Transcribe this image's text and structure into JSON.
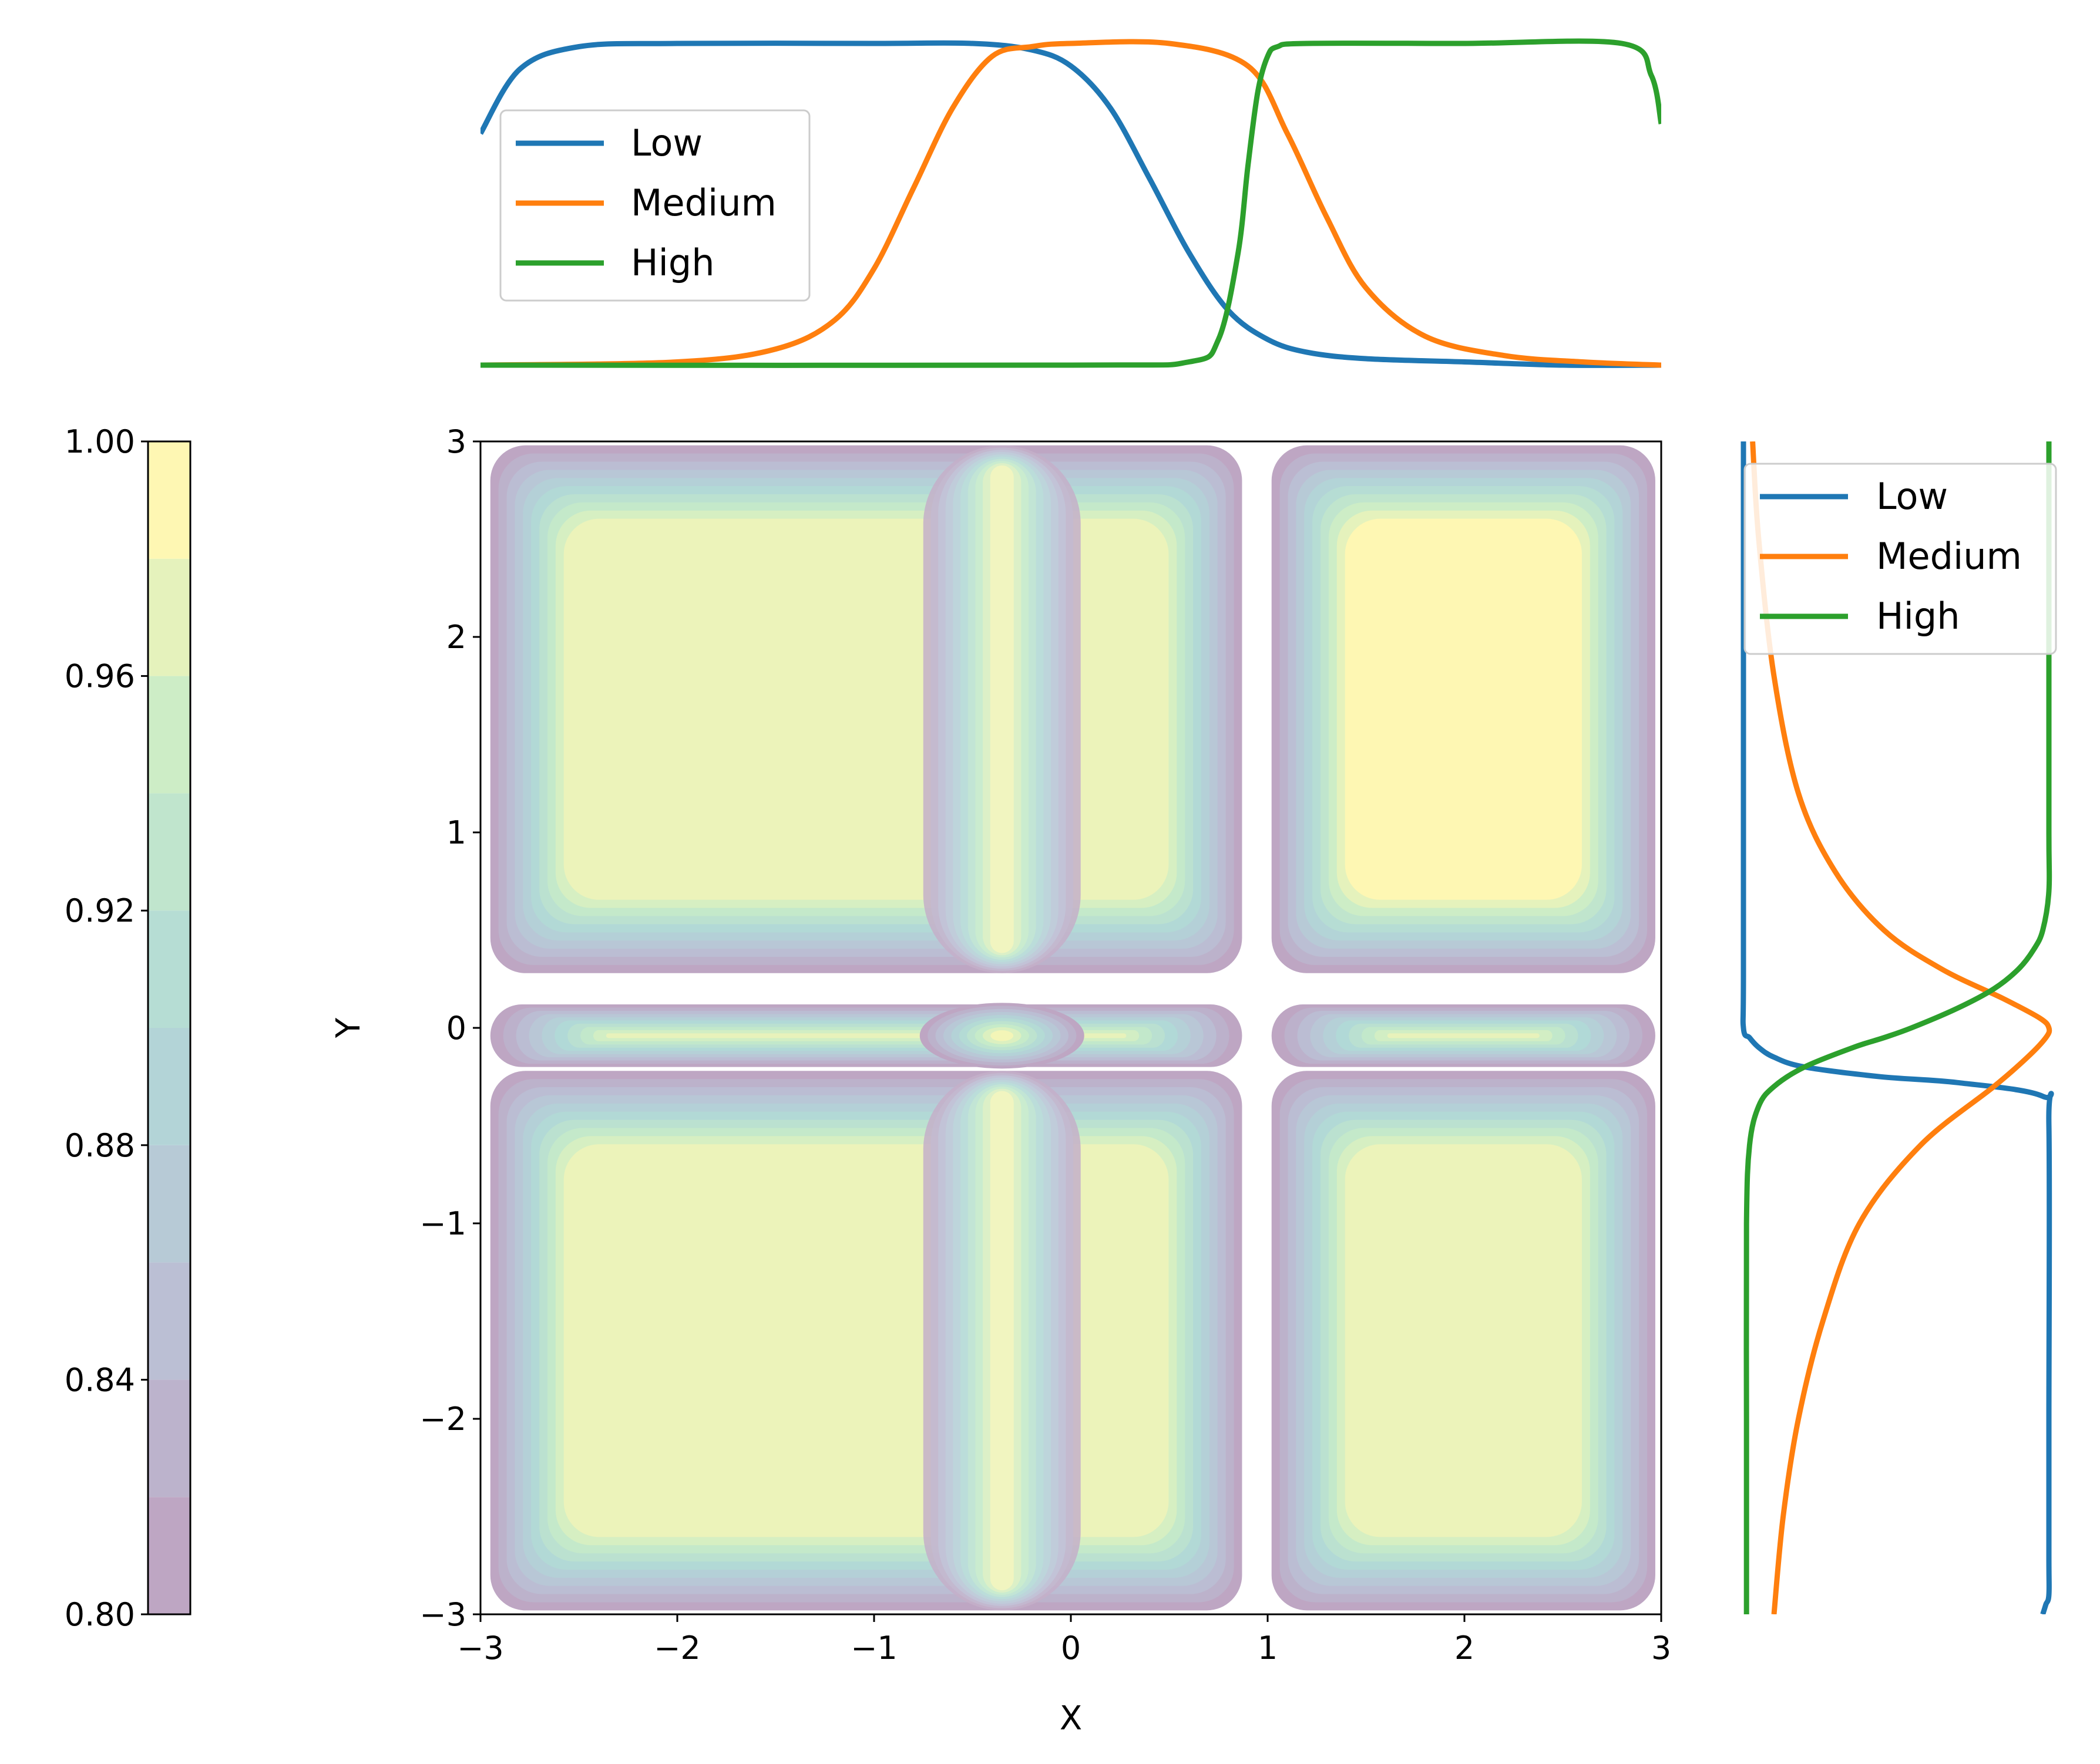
{
  "chart_data": {
    "type": "contour",
    "title": "",
    "colors": {
      "low": "#1f77b4",
      "medium": "#ff7f0e",
      "high": "#2ca02c",
      "background": "#ffffff"
    },
    "main": {
      "type": "heatmap",
      "xlabel": "X",
      "ylabel": "Y",
      "xlim": [
        -3,
        3
      ],
      "ylim": [
        -3,
        3
      ],
      "xticks": [
        -3,
        -2,
        -1,
        0,
        1,
        2,
        3
      ],
      "yticks": [
        -3,
        -2,
        -1,
        0,
        1,
        2,
        3
      ],
      "xtick_labels": [
        "−3",
        "−2",
        "−1",
        "0",
        "1",
        "2",
        "3"
      ],
      "ytick_labels": [
        "−3",
        "−2",
        "−1",
        "0",
        "1",
        "2",
        "3"
      ],
      "grid": false,
      "colormap": "viridis",
      "alpha": 0.35,
      "contour_levels": [
        0.8,
        0.82,
        0.84,
        0.86,
        0.88,
        0.9,
        0.92,
        0.94,
        0.96,
        0.98,
        1.0
      ],
      "z_range": [
        0.8,
        1.0
      ],
      "x_blocks": [
        [
          -2.95,
          0.87
        ],
        [
          1.02,
          2.97
        ]
      ],
      "y_blocks": [
        [
          -2.98,
          -0.22
        ],
        [
          -0.2,
          0.12
        ],
        [
          0.28,
          2.98
        ]
      ],
      "stripe_x": [
        -0.75,
        0.05
      ],
      "stripe_center_x": -0.35
    },
    "top": {
      "type": "line",
      "xlim": [
        -3,
        3
      ],
      "ylim": [
        0,
        1
      ],
      "legend_position": "upper-left",
      "series": [
        {
          "name": "Low",
          "x": [
            -3.0,
            -2.8,
            -2.5,
            -2.0,
            -1.0,
            -0.5,
            -0.2,
            0.0,
            0.2,
            0.4,
            0.6,
            0.8,
            1.0,
            1.2,
            1.5,
            2.0,
            2.5,
            3.0
          ],
          "values": [
            0.72,
            0.92,
            0.99,
            1.0,
            1.0,
            1.0,
            0.98,
            0.93,
            0.8,
            0.58,
            0.35,
            0.17,
            0.08,
            0.04,
            0.02,
            0.01,
            0.0,
            0.0
          ]
        },
        {
          "name": "Medium",
          "x": [
            -3.0,
            -2.0,
            -1.5,
            -1.2,
            -1.0,
            -0.8,
            -0.6,
            -0.4,
            -0.2,
            0.0,
            0.5,
            0.9,
            1.1,
            1.3,
            1.5,
            1.8,
            2.2,
            2.6,
            3.0
          ],
          "values": [
            0.0,
            0.01,
            0.05,
            0.14,
            0.3,
            0.55,
            0.8,
            0.96,
            0.99,
            1.0,
            1.0,
            0.93,
            0.72,
            0.46,
            0.24,
            0.09,
            0.03,
            0.01,
            0.0
          ]
        },
        {
          "name": "High",
          "x": [
            -3.0,
            0.0,
            0.6,
            0.75,
            0.85,
            0.9,
            0.95,
            1.0,
            1.05,
            1.2,
            2.0,
            2.8,
            2.95,
            3.0
          ],
          "values": [
            0.0,
            0.0,
            0.01,
            0.08,
            0.35,
            0.62,
            0.85,
            0.96,
            0.99,
            1.0,
            1.0,
            1.0,
            0.9,
            0.75
          ]
        }
      ]
    },
    "right": {
      "type": "line",
      "orientation": "vertical",
      "ylim": [
        -3,
        3
      ],
      "xlim": [
        0,
        1
      ],
      "legend_position": "upper-right",
      "series": [
        {
          "name": "Low",
          "y": [
            -3.0,
            -2.95,
            -2.9,
            -2.7,
            -2.0,
            -0.5,
            -0.35,
            -0.28,
            -0.25,
            -0.2,
            -0.15,
            -0.1,
            -0.05,
            0.0,
            0.3,
            2.0,
            3.0
          ],
          "values": [
            0.98,
            0.99,
            1.0,
            1.0,
            1.0,
            1.0,
            0.98,
            0.7,
            0.45,
            0.2,
            0.1,
            0.05,
            0.02,
            0.0,
            0.0,
            0.0,
            0.0
          ]
        },
        {
          "name": "Medium",
          "y": [
            -3.0,
            -2.5,
            -2.0,
            -1.5,
            -1.0,
            -0.6,
            -0.3,
            -0.15,
            -0.05,
            0.0,
            0.05,
            0.15,
            0.3,
            0.5,
            0.8,
            1.2,
            1.8,
            2.5,
            3.0
          ],
          "values": [
            0.1,
            0.13,
            0.18,
            0.26,
            0.38,
            0.58,
            0.82,
            0.93,
            0.99,
            1.0,
            0.97,
            0.85,
            0.65,
            0.46,
            0.3,
            0.18,
            0.1,
            0.05,
            0.03
          ]
        },
        {
          "name": "High",
          "y": [
            -3.0,
            -2.0,
            -1.0,
            -0.6,
            -0.4,
            -0.3,
            -0.2,
            -0.1,
            -0.05,
            0.0,
            0.1,
            0.2,
            0.3,
            0.4,
            0.5,
            0.7,
            1.0,
            2.0,
            3.0
          ],
          "values": [
            0.01,
            0.01,
            0.01,
            0.02,
            0.05,
            0.1,
            0.2,
            0.36,
            0.46,
            0.55,
            0.7,
            0.82,
            0.9,
            0.95,
            0.98,
            1.0,
            1.0,
            1.0,
            1.0
          ]
        }
      ]
    },
    "colorbar": {
      "range": [
        0.8,
        1.0
      ],
      "ticks": [
        0.8,
        0.84,
        0.88,
        0.92,
        0.96,
        1.0
      ],
      "tick_labels": [
        "0.80",
        "0.84",
        "0.88",
        "0.92",
        "0.96",
        "1.00"
      ],
      "levels": [
        0.8,
        0.82,
        0.84,
        0.86,
        0.88,
        0.9,
        0.92,
        0.94,
        0.96,
        0.98,
        1.0
      ]
    },
    "legends": {
      "top": [
        "Low",
        "Medium",
        "High"
      ],
      "right": [
        "Low",
        "Medium",
        "High"
      ]
    }
  }
}
